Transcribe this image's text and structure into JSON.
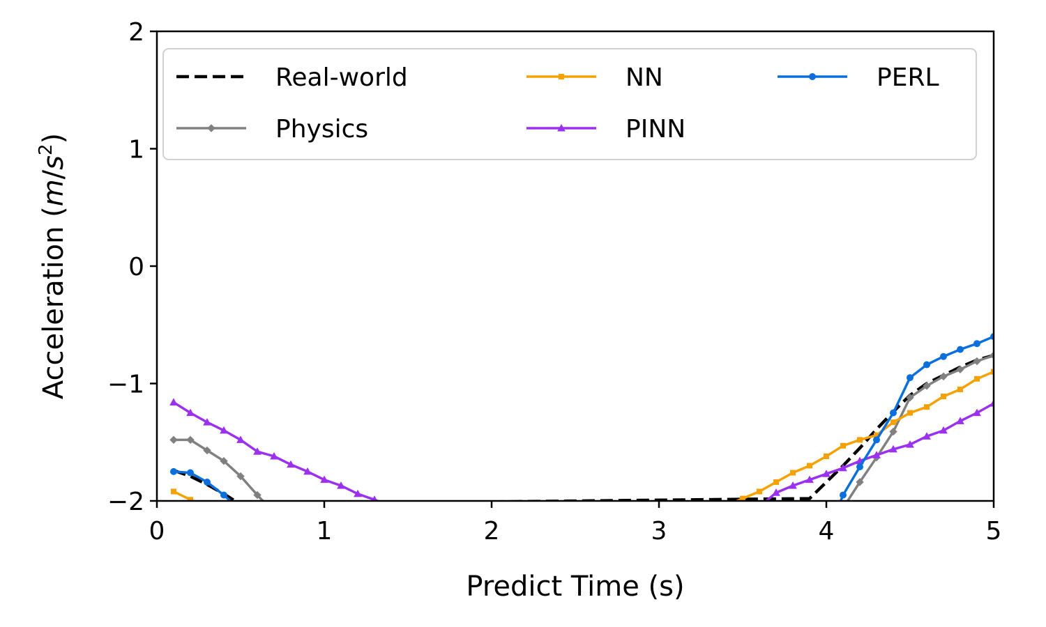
{
  "chart_data": {
    "type": "line",
    "xlabel": "Predict Time (s)",
    "ylabel": "Acceleration (m/s²)",
    "ylabel_parts": {
      "prefix": "Acceleration (",
      "unit_m": "m",
      "unit_slash": "/",
      "unit_s": "s",
      "unit_exp": "2",
      "suffix": ")"
    },
    "xlim": [
      0,
      5
    ],
    "ylim": [
      -2,
      2
    ],
    "x_ticks": [
      0,
      1,
      2,
      3,
      4,
      5
    ],
    "y_ticks": [
      -2,
      -1,
      0,
      1,
      2
    ],
    "x_tick_labels": [
      "0",
      "1",
      "2",
      "3",
      "4",
      "5"
    ],
    "y_tick_labels": [
      "−2",
      "−1",
      "0",
      "1",
      "2"
    ],
    "grid": false,
    "legend_placement": "top, 3 columns",
    "series": [
      {
        "name": "Real-world",
        "color": "#000000",
        "style": "dashed",
        "marker": "none",
        "x": [
          0.1,
          0.2,
          0.3,
          0.4,
          0.5,
          3.9,
          4.0,
          4.1,
          4.2,
          4.3,
          4.4,
          4.5,
          4.6,
          4.7,
          4.8,
          4.9,
          5.0
        ],
        "y": [
          -1.74,
          -1.79,
          -1.86,
          -1.94,
          -2.03,
          -1.98,
          -1.84,
          -1.7,
          -1.55,
          -1.39,
          -1.24,
          -1.1,
          -1.0,
          -0.93,
          -0.86,
          -0.8,
          -0.76
        ]
      },
      {
        "name": "Physics",
        "color": "#808080",
        "style": "solid",
        "marker": "diamond",
        "x": [
          0.1,
          0.2,
          0.3,
          0.4,
          0.5,
          0.6,
          0.7,
          4.1,
          4.2,
          4.3,
          4.4,
          4.5,
          4.6,
          4.7,
          4.8,
          4.9,
          5.0
        ],
        "y": [
          -1.48,
          -1.48,
          -1.57,
          -1.66,
          -1.79,
          -1.95,
          -2.1,
          -2.06,
          -1.84,
          -1.63,
          -1.41,
          -1.12,
          -1.02,
          -0.94,
          -0.88,
          -0.81,
          -0.76
        ]
      },
      {
        "name": "NN",
        "color": "#f5a200",
        "style": "solid",
        "marker": "square",
        "x": [
          0.1,
          0.2,
          0.3,
          3.4,
          3.5,
          3.6,
          3.7,
          3.8,
          3.9,
          4.0,
          4.1,
          4.2,
          4.3,
          4.4,
          4.5,
          4.6,
          4.7,
          4.8,
          4.9,
          5.0
        ],
        "y": [
          -1.92,
          -1.99,
          -2.05,
          -2.04,
          -1.98,
          -1.92,
          -1.84,
          -1.76,
          -1.7,
          -1.62,
          -1.53,
          -1.48,
          -1.44,
          -1.33,
          -1.25,
          -1.2,
          -1.11,
          -1.05,
          -0.96,
          -0.9
        ]
      },
      {
        "name": "PINN",
        "color": "#9b30f0",
        "style": "solid",
        "marker": "triangle",
        "x": [
          0.1,
          0.2,
          0.3,
          0.4,
          0.5,
          0.6,
          0.7,
          0.8,
          0.9,
          1.0,
          1.1,
          1.2,
          1.3,
          1.4,
          3.6,
          3.7,
          3.8,
          3.9,
          4.0,
          4.1,
          4.2,
          4.3,
          4.4,
          4.5,
          4.6,
          4.7,
          4.8,
          4.9,
          5.0
        ],
        "y": [
          -1.16,
          -1.25,
          -1.33,
          -1.4,
          -1.48,
          -1.58,
          -1.62,
          -1.69,
          -1.75,
          -1.82,
          -1.87,
          -1.94,
          -1.99,
          -2.05,
          -2.05,
          -1.93,
          -1.87,
          -1.82,
          -1.77,
          -1.72,
          -1.66,
          -1.61,
          -1.56,
          -1.52,
          -1.45,
          -1.4,
          -1.32,
          -1.25,
          -1.17
        ]
      },
      {
        "name": "PERL",
        "color": "#0a6fdc",
        "style": "solid",
        "marker": "circle",
        "x": [
          0.1,
          0.2,
          0.3,
          0.4,
          0.5,
          4.0,
          4.1,
          4.2,
          4.3,
          4.4,
          4.5,
          4.6,
          4.7,
          4.8,
          4.9,
          5.0
        ],
        "y": [
          -1.75,
          -1.76,
          -1.84,
          -1.95,
          -2.08,
          -2.3,
          -1.95,
          -1.71,
          -1.48,
          -1.25,
          -0.95,
          -0.84,
          -0.77,
          -0.71,
          -0.66,
          -0.6
        ]
      }
    ]
  }
}
